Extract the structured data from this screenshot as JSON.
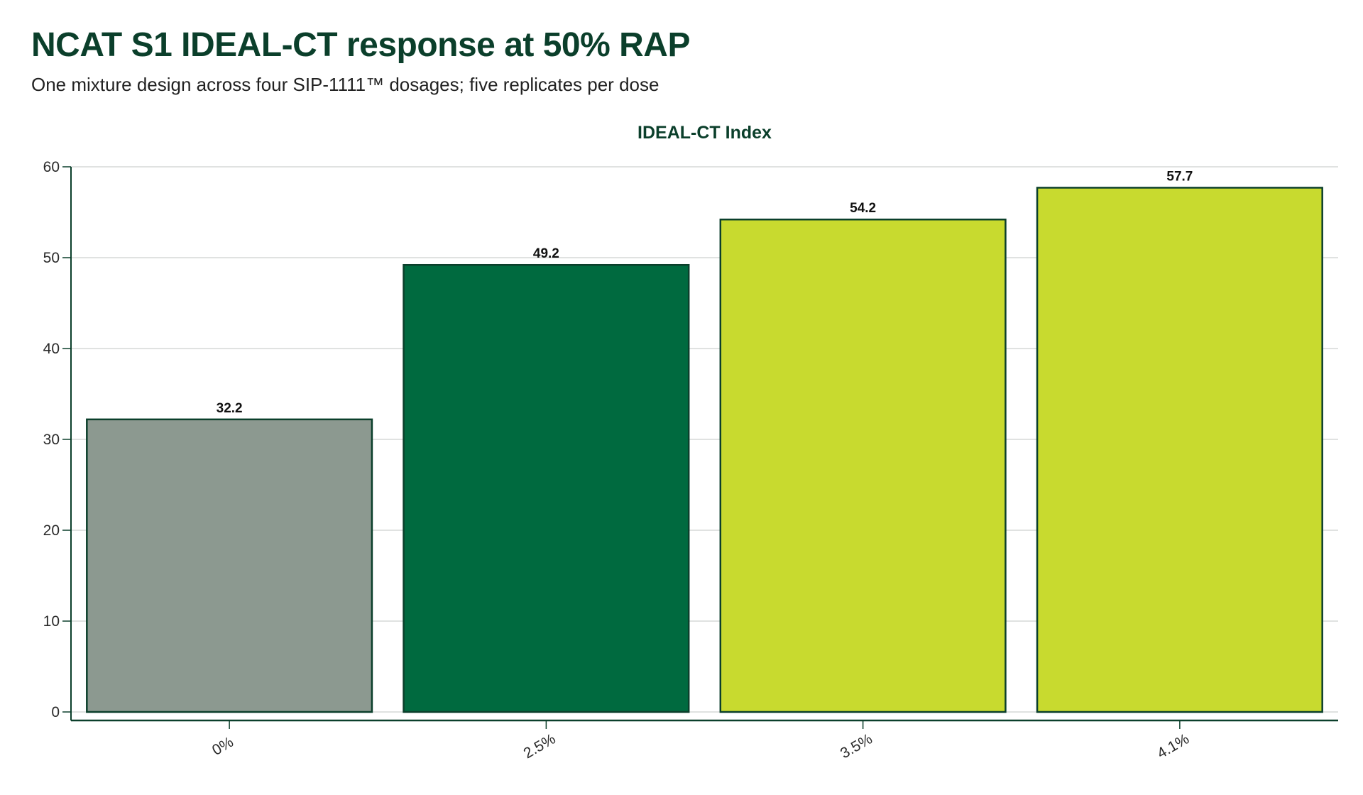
{
  "header": {
    "title": "NCAT S1 IDEAL-CT response at 50% RAP",
    "subtitle": "One mixture design across four SIP-1111™ dosages; five replicates per dose"
  },
  "chart_data": {
    "type": "bar",
    "title": "IDEAL-CT Index",
    "xlabel": "",
    "ylabel": "",
    "categories": [
      "0%",
      "2.5%",
      "3.5%",
      "4.1%"
    ],
    "values": [
      32.2,
      49.2,
      54.2,
      57.7
    ],
    "data_labels": [
      "32.2",
      "49.2",
      "54.2",
      "57.7"
    ],
    "ylim": [
      0,
      60
    ],
    "yticks": [
      0,
      10,
      20,
      30,
      40,
      50,
      60
    ],
    "grid": true,
    "legend": "none",
    "colors": {
      "bars": [
        "#8c9990",
        "#006a3f",
        "#c8da2f",
        "#c8da2f"
      ],
      "bar_outline": "#0b3f2b",
      "grid": "#d6d9d7",
      "axis": "#0b3f2b"
    }
  }
}
